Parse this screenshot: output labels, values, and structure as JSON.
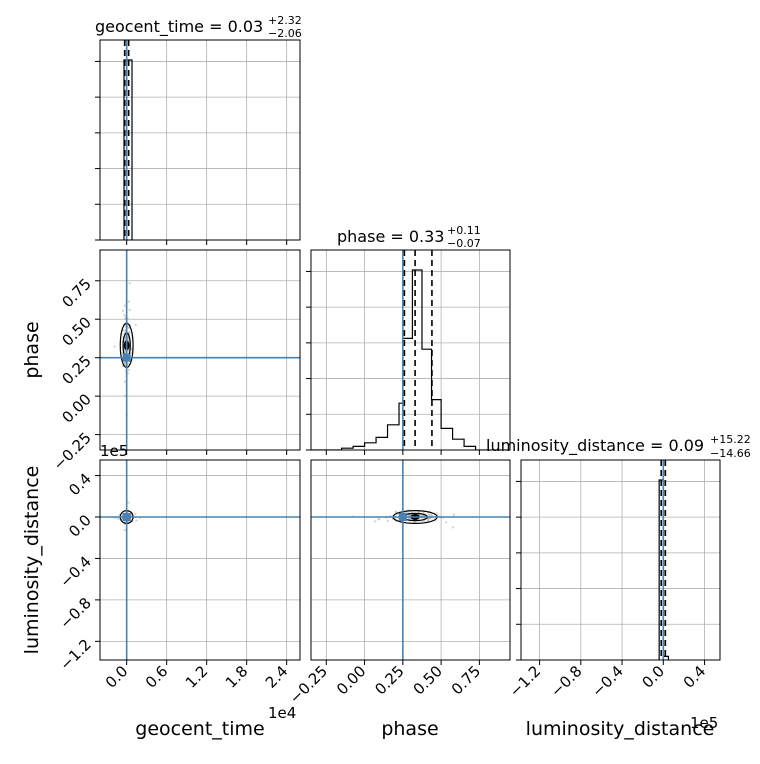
{
  "chart_data": {
    "type": "corner",
    "params": [
      "geocent_time",
      "phase",
      "luminosity_distance"
    ],
    "axis_labels": [
      "geocent_time",
      "phase",
      "luminosity_distance"
    ],
    "titles": [
      {
        "name": "geocent_time",
        "median": "0.03",
        "plus": "+2.32",
        "minus": "−2.06",
        "eq": " = "
      },
      {
        "name": "phase",
        "median": "0.33",
        "plus": "+0.11",
        "minus": "−0.07",
        "eq": " = "
      },
      {
        "name": "luminosity_distance",
        "median": "0.09",
        "plus": "+15.22",
        "minus": "−14.66",
        "eq": " = "
      }
    ],
    "offsets": {
      "geocent_time": "1e4",
      "luminosity_distance": "1e5"
    },
    "ranges": {
      "geocent_time": [
        -0.4,
        2.6
      ],
      "phase": [
        -0.35,
        0.95
      ],
      "luminosity_distance": [
        -1.38,
        0.55
      ]
    },
    "ticks": {
      "geocent_time": {
        "values": [
          0.0,
          0.6,
          1.2,
          1.8,
          2.4
        ],
        "labels": [
          "0.0",
          "0.6",
          "1.2",
          "1.8",
          "2.4"
        ]
      },
      "phase": {
        "values": [
          -0.25,
          0.0,
          0.25,
          0.5,
          0.75
        ],
        "labels": [
          "−0.25",
          "0.00",
          "0.25",
          "0.50",
          "0.75"
        ]
      },
      "luminosity_distance": {
        "values": [
          -1.2,
          -0.8,
          -0.4,
          0.0,
          0.4
        ],
        "labels": [
          "−1.2",
          "−0.8",
          "−0.4",
          "0.0",
          "0.4"
        ]
      }
    },
    "truths": {
      "geocent_time": 0.0,
      "phase": 0.25,
      "luminosity_distance": 0.0
    },
    "quantiles": {
      "geocent_time": [
        -0.03,
        0.0,
        0.03
      ],
      "phase": [
        0.26,
        0.33,
        0.44
      ],
      "luminosity_distance": [
        -0.02,
        0.0,
        0.02
      ]
    },
    "histograms": {
      "geocent_time": {
        "edges": [
          -0.04,
          0.08
        ],
        "counts": [
          1
        ]
      },
      "phase": {
        "edges": [
          -0.35,
          -0.15,
          -0.075,
          0.0,
          0.075,
          0.15,
          0.225,
          0.25,
          0.3125,
          0.375,
          0.4375,
          0.5,
          0.575,
          0.65,
          0.725,
          0.95
        ],
        "counts": [
          0.0,
          0.01,
          0.02,
          0.04,
          0.07,
          0.14,
          0.26,
          0.62,
          1.0,
          0.56,
          0.28,
          0.12,
          0.06,
          0.02,
          0.0
        ]
      },
      "luminosity_distance": {
        "edges": [
          -0.04,
          0.0,
          0.05
        ],
        "counts": [
          1.0,
          0.02
        ]
      }
    },
    "grid": true,
    "truth_color": "#4682b4",
    "line_color": "#000000",
    "scatter_color": "#b0b0b0"
  }
}
